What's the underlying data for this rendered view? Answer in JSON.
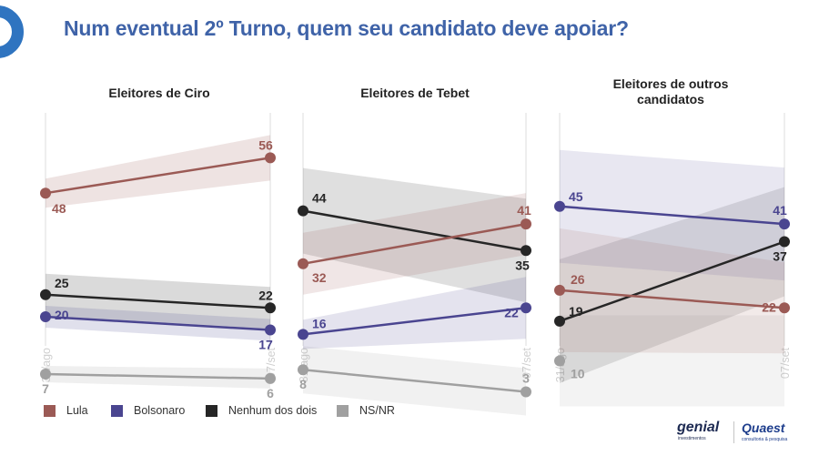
{
  "title": "Num eventual 2º Turno, quem seu candidato deve apoiar?",
  "brands": {
    "genial": "genial",
    "genial_sub": "investimentos",
    "quaest": "Quaest",
    "quaest_sub": "consultoria & pesquisa"
  },
  "legend": [
    {
      "name": "Lula",
      "color": "#9b5a55"
    },
    {
      "name": "Bolsonaro",
      "color": "#4a4590"
    },
    {
      "name": "Nenhum dos dois",
      "color": "#262626"
    },
    {
      "name": "NS/NR",
      "color": "#a0a0a0"
    }
  ],
  "chart_data": [
    {
      "type": "line",
      "title": "Eleitores de Ciro",
      "x": [
        "31/ago",
        "07/set"
      ],
      "series": [
        {
          "name": "Lula",
          "values": [
            48,
            56
          ]
        },
        {
          "name": "Bolsonaro",
          "values": [
            20,
            17
          ]
        },
        {
          "name": "Nenhum dos dois",
          "values": [
            25,
            22
          ]
        },
        {
          "name": "NS/NR",
          "values": [
            7,
            6
          ]
        }
      ]
    },
    {
      "type": "line",
      "title": "Eleitores de Tebet",
      "x": [
        "31/ago",
        "07/set"
      ],
      "series": [
        {
          "name": "Lula",
          "values": [
            32,
            41
          ]
        },
        {
          "name": "Bolsonaro",
          "values": [
            16,
            22
          ]
        },
        {
          "name": "Nenhum dos dois",
          "values": [
            44,
            35
          ]
        },
        {
          "name": "NS/NR",
          "values": [
            8,
            3
          ]
        }
      ]
    },
    {
      "type": "line",
      "title": "Eleitores de outros candidatos",
      "x": [
        "31/ago",
        "07/set"
      ],
      "series": [
        {
          "name": "Lula",
          "values": [
            26,
            22
          ]
        },
        {
          "name": "Bolsonaro",
          "values": [
            45,
            41
          ]
        },
        {
          "name": "Nenhum dos dois",
          "values": [
            19,
            37
          ]
        },
        {
          "name": "NS/NR",
          "values": [
            10,
            null
          ]
        }
      ]
    }
  ]
}
